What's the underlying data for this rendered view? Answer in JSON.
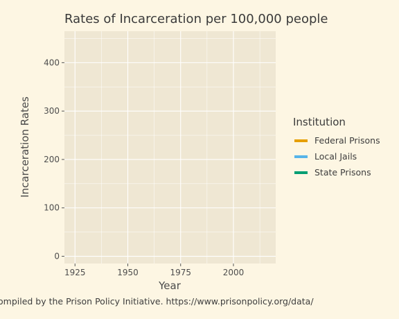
{
  "chart_data": {
    "type": "line",
    "title": "Rates of Incarceration per 100,000 people",
    "xlabel": "Year",
    "ylabel": "Incarceration Rates",
    "caption": "ompiled by the Prison Policy Initiative. https://www.prisonpolicy.org/data/",
    "xlim": [
      1920,
      2020
    ],
    "ylim": [
      -15,
      465
    ],
    "x_ticks": [
      1925,
      1950,
      1975,
      2000
    ],
    "y_ticks": [
      0,
      100,
      200,
      300,
      400
    ],
    "grid": true,
    "legend": {
      "title": "Institution",
      "placement": "right"
    },
    "series": [
      {
        "name": "Federal Prisons",
        "color": "#E69F00",
        "x": [],
        "y": []
      },
      {
        "name": "Local Jails",
        "color": "#56B4E9",
        "x": [],
        "y": []
      },
      {
        "name": "State Prisons",
        "color": "#009E73",
        "x": [],
        "y": []
      }
    ],
    "colors": {
      "background": "#fdf6e3",
      "panel": "#efe7d3",
      "grid": "#ffffff"
    }
  }
}
